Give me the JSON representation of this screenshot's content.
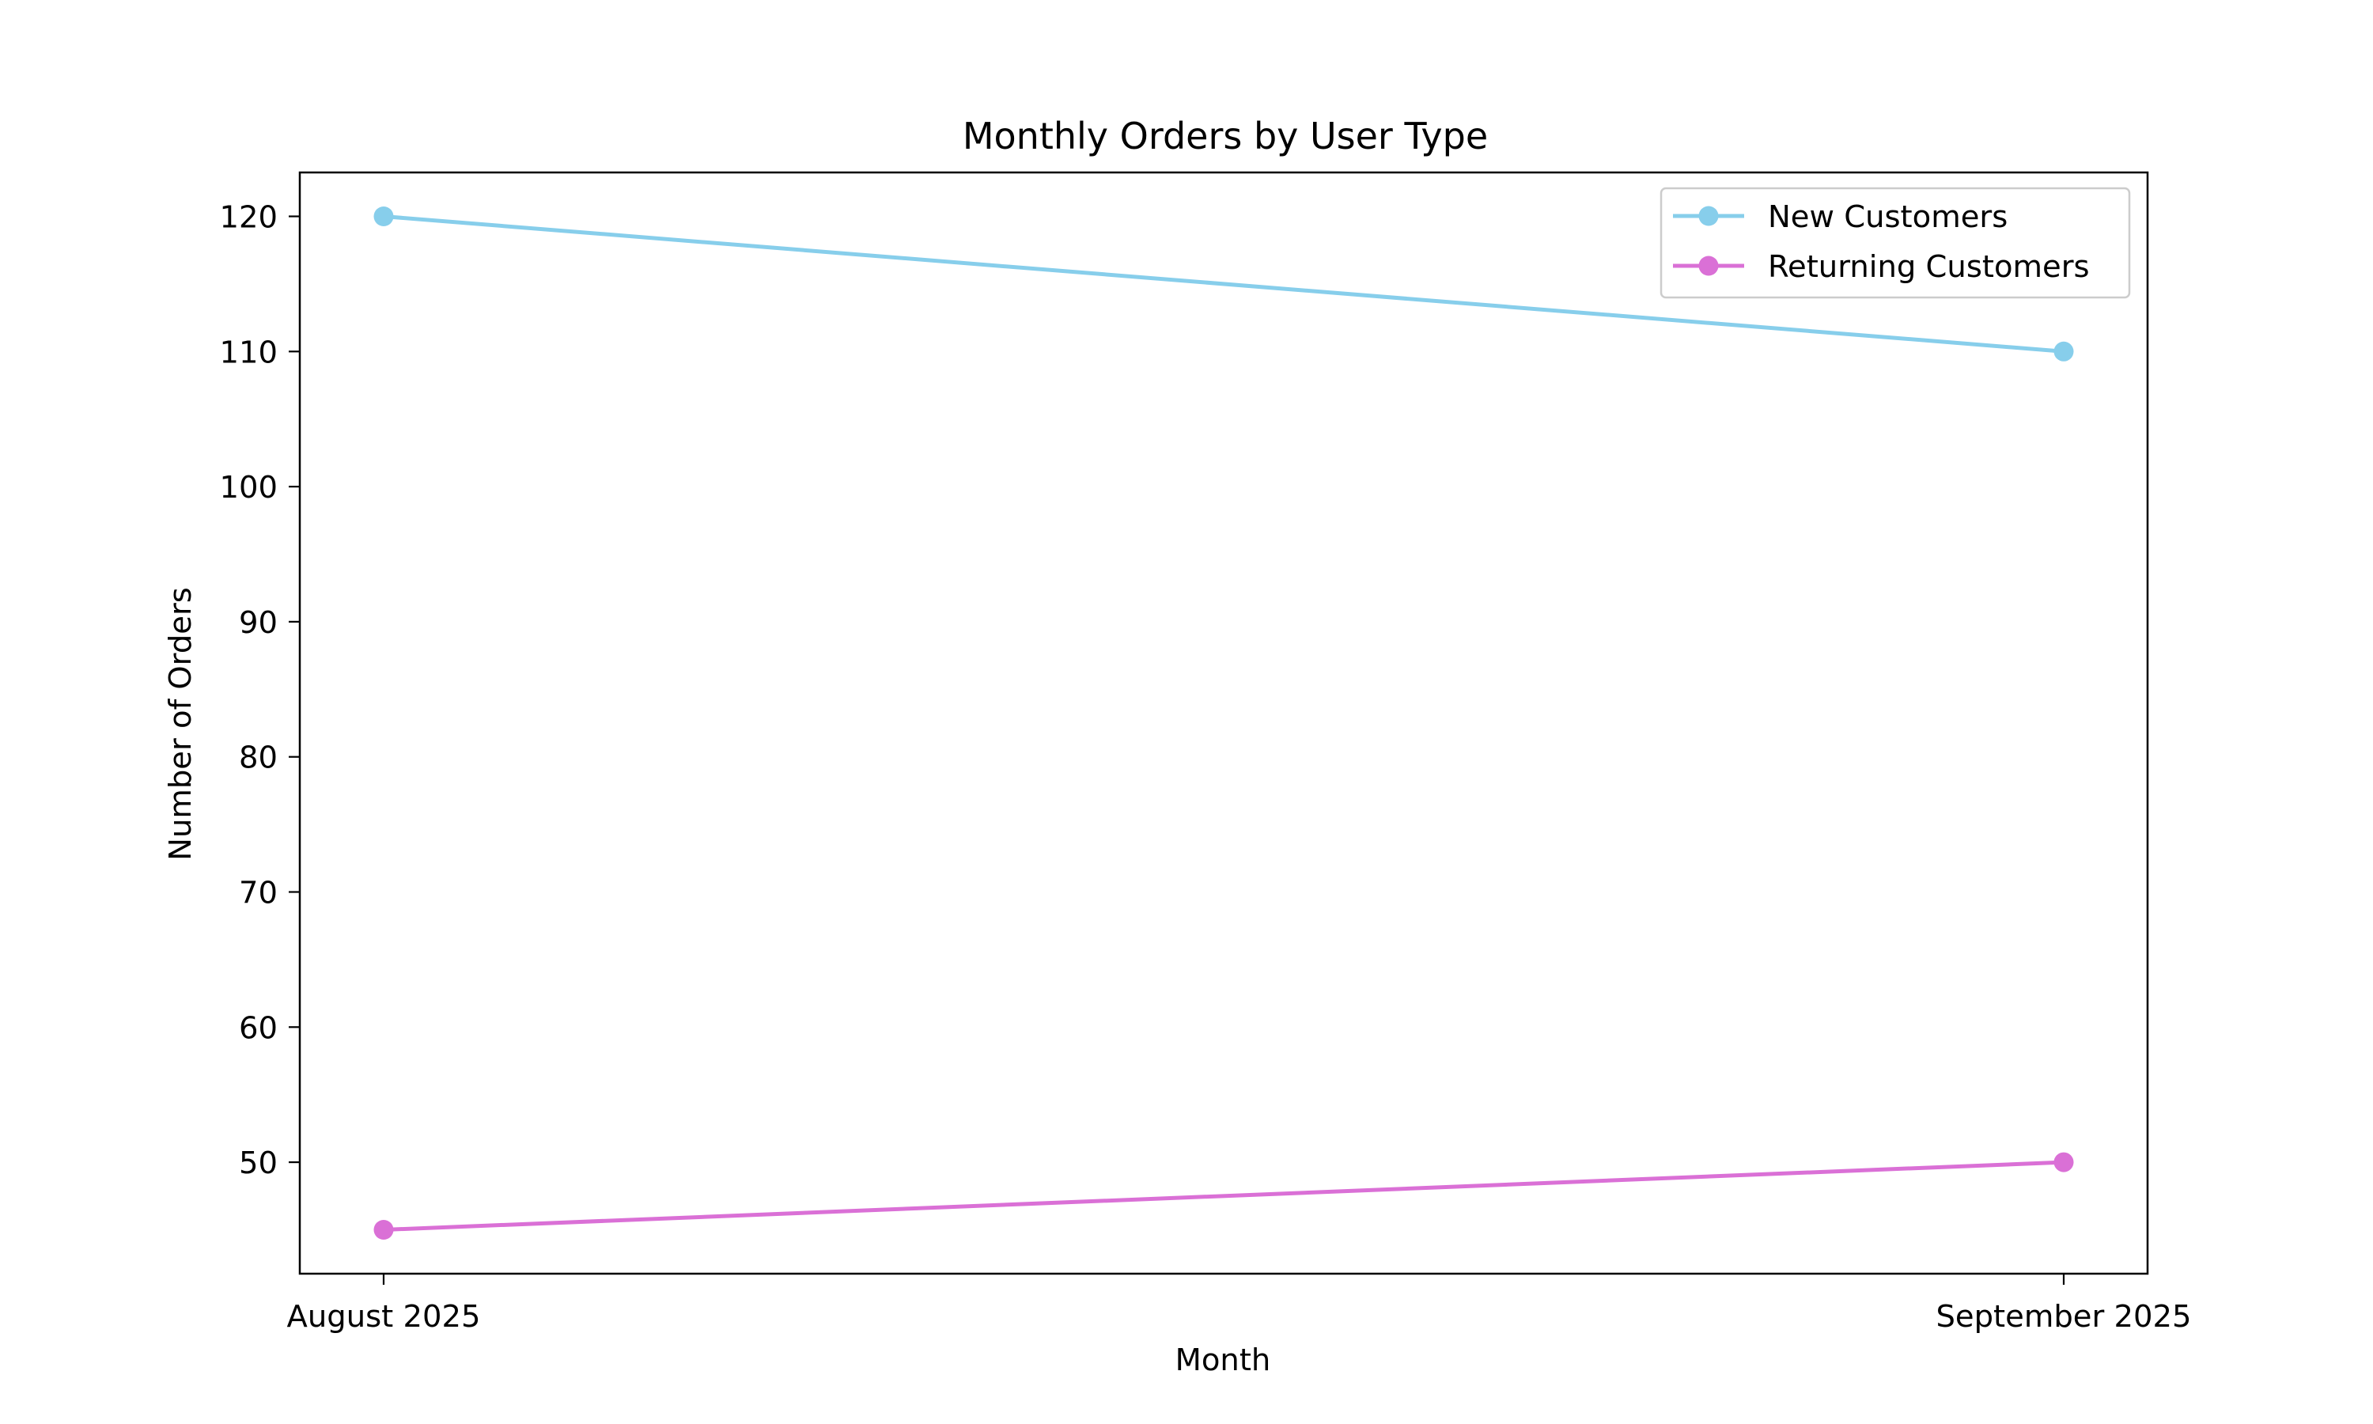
{
  "chart_data": {
    "type": "line",
    "title": "Monthly Orders by User Type",
    "xlabel": "Month",
    "ylabel": "Number of Orders",
    "categories": [
      "August 2025",
      "September 2025"
    ],
    "yticks": [
      50,
      60,
      70,
      80,
      90,
      100,
      110,
      120
    ],
    "ylim": [
      41.75,
      123.25
    ],
    "grid": false,
    "legend_position": "top-right",
    "series": [
      {
        "name": "New Customers",
        "values": [
          120,
          110
        ],
        "color": "#87ceeb",
        "marker": "circle"
      },
      {
        "name": "Returning Customers",
        "values": [
          45,
          50
        ],
        "color": "#da70d6",
        "marker": "circle"
      }
    ]
  }
}
